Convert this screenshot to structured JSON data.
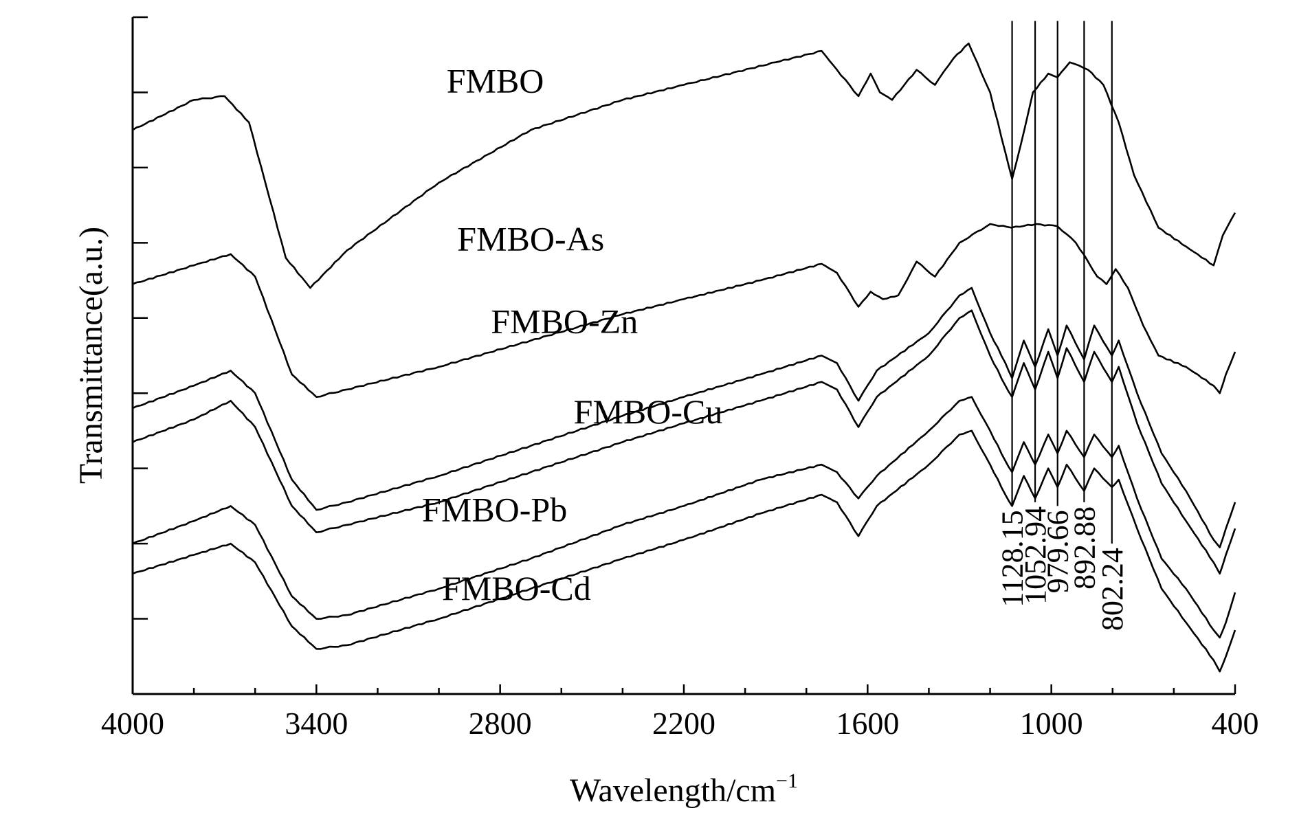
{
  "chart_data": {
    "type": "line",
    "xlabel": "Wavelength/cm",
    "xlabel_sup": "−1",
    "ylabel": "Transmittance(a.u.)",
    "xlim": [
      4000,
      400
    ],
    "x_reversed": true,
    "x_ticks": [
      4000,
      3400,
      2800,
      2200,
      1600,
      1000,
      400
    ],
    "y_ticks_count": 9,
    "ylim": [
      0,
      9
    ],
    "grid": false,
    "legend": "none",
    "series": [
      {
        "name": "FMBO",
        "points": [
          [
            4000,
            7.5
          ],
          [
            3800,
            7.9
          ],
          [
            3700,
            7.95
          ],
          [
            3620,
            7.6
          ],
          [
            3500,
            5.8
          ],
          [
            3420,
            5.4
          ],
          [
            3300,
            5.9
          ],
          [
            3000,
            6.8
          ],
          [
            2700,
            7.5
          ],
          [
            2400,
            7.9
          ],
          [
            2200,
            8.1
          ],
          [
            1900,
            8.4
          ],
          [
            1750,
            8.55
          ],
          [
            1700,
            8.3
          ],
          [
            1630,
            7.95
          ],
          [
            1590,
            8.25
          ],
          [
            1560,
            8.0
          ],
          [
            1520,
            7.9
          ],
          [
            1440,
            8.3
          ],
          [
            1380,
            8.1
          ],
          [
            1320,
            8.45
          ],
          [
            1270,
            8.65
          ],
          [
            1200,
            8.0
          ],
          [
            1150,
            7.2
          ],
          [
            1128.15,
            6.85
          ],
          [
            1100,
            7.3
          ],
          [
            1060,
            8.0
          ],
          [
            1010,
            8.25
          ],
          [
            980,
            8.2
          ],
          [
            940,
            8.4
          ],
          [
            880,
            8.3
          ],
          [
            830,
            8.1
          ],
          [
            780,
            7.6
          ],
          [
            730,
            6.9
          ],
          [
            650,
            6.2
          ],
          [
            560,
            5.95
          ],
          [
            470,
            5.7
          ],
          [
            440,
            6.1
          ],
          [
            400,
            6.4
          ]
        ]
      },
      {
        "name": "FMBO-As",
        "points": [
          [
            4000,
            5.45
          ],
          [
            3800,
            5.7
          ],
          [
            3680,
            5.85
          ],
          [
            3600,
            5.55
          ],
          [
            3480,
            4.25
          ],
          [
            3400,
            3.95
          ],
          [
            3300,
            4.05
          ],
          [
            3000,
            4.35
          ],
          [
            2700,
            4.7
          ],
          [
            2400,
            5.05
          ],
          [
            2200,
            5.25
          ],
          [
            1950,
            5.5
          ],
          [
            1750,
            5.72
          ],
          [
            1700,
            5.6
          ],
          [
            1630,
            5.15
          ],
          [
            1590,
            5.35
          ],
          [
            1550,
            5.25
          ],
          [
            1500,
            5.3
          ],
          [
            1440,
            5.75
          ],
          [
            1380,
            5.55
          ],
          [
            1300,
            6.0
          ],
          [
            1200,
            6.25
          ],
          [
            1130,
            6.2
          ],
          [
            1050,
            6.25
          ],
          [
            980,
            6.22
          ],
          [
            920,
            6.0
          ],
          [
            880,
            5.75
          ],
          [
            850,
            5.55
          ],
          [
            820,
            5.45
          ],
          [
            790,
            5.65
          ],
          [
            750,
            5.4
          ],
          [
            700,
            4.9
          ],
          [
            650,
            4.5
          ],
          [
            560,
            4.35
          ],
          [
            470,
            4.1
          ],
          [
            450,
            4.0
          ],
          [
            430,
            4.25
          ],
          [
            400,
            4.55
          ]
        ]
      },
      {
        "name": "FMBO-Zn",
        "points": [
          [
            4000,
            3.8
          ],
          [
            3800,
            4.1
          ],
          [
            3680,
            4.3
          ],
          [
            3600,
            4.0
          ],
          [
            3480,
            2.85
          ],
          [
            3400,
            2.45
          ],
          [
            3300,
            2.55
          ],
          [
            3000,
            2.9
          ],
          [
            2700,
            3.3
          ],
          [
            2400,
            3.7
          ],
          [
            2200,
            3.95
          ],
          [
            1950,
            4.25
          ],
          [
            1750,
            4.5
          ],
          [
            1700,
            4.4
          ],
          [
            1630,
            3.9
          ],
          [
            1570,
            4.3
          ],
          [
            1400,
            4.8
          ],
          [
            1300,
            5.3
          ],
          [
            1260,
            5.4
          ],
          [
            1200,
            4.8
          ],
          [
            1150,
            4.4
          ],
          [
            1128.15,
            4.2
          ],
          [
            1090,
            4.7
          ],
          [
            1053,
            4.35
          ],
          [
            1010,
            4.85
          ],
          [
            979.66,
            4.5
          ],
          [
            950,
            4.9
          ],
          [
            892.88,
            4.45
          ],
          [
            860,
            4.9
          ],
          [
            802.24,
            4.5
          ],
          [
            780,
            4.7
          ],
          [
            720,
            4.0
          ],
          [
            640,
            3.2
          ],
          [
            560,
            2.7
          ],
          [
            470,
            2.05
          ],
          [
            450,
            1.95
          ],
          [
            430,
            2.2
          ],
          [
            400,
            2.55
          ]
        ]
      },
      {
        "name": "FMBO-Cu",
        "points": [
          [
            4000,
            3.35
          ],
          [
            3800,
            3.65
          ],
          [
            3680,
            3.9
          ],
          [
            3600,
            3.55
          ],
          [
            3480,
            2.5
          ],
          [
            3400,
            2.15
          ],
          [
            3300,
            2.25
          ],
          [
            3000,
            2.55
          ],
          [
            2700,
            2.95
          ],
          [
            2400,
            3.35
          ],
          [
            2200,
            3.6
          ],
          [
            1950,
            3.9
          ],
          [
            1750,
            4.15
          ],
          [
            1700,
            4.05
          ],
          [
            1630,
            3.55
          ],
          [
            1570,
            3.95
          ],
          [
            1400,
            4.5
          ],
          [
            1300,
            5.0
          ],
          [
            1260,
            5.1
          ],
          [
            1200,
            4.5
          ],
          [
            1150,
            4.1
          ],
          [
            1128.15,
            3.95
          ],
          [
            1090,
            4.4
          ],
          [
            1053,
            4.05
          ],
          [
            1010,
            4.55
          ],
          [
            979.66,
            4.2
          ],
          [
            950,
            4.6
          ],
          [
            892.88,
            4.15
          ],
          [
            860,
            4.55
          ],
          [
            802.24,
            4.15
          ],
          [
            780,
            4.35
          ],
          [
            720,
            3.6
          ],
          [
            640,
            2.8
          ],
          [
            560,
            2.3
          ],
          [
            470,
            1.75
          ],
          [
            450,
            1.6
          ],
          [
            430,
            1.85
          ],
          [
            400,
            2.2
          ]
        ]
      },
      {
        "name": "FMBO-Pb",
        "points": [
          [
            4000,
            2.0
          ],
          [
            3800,
            2.3
          ],
          [
            3680,
            2.5
          ],
          [
            3600,
            2.25
          ],
          [
            3480,
            1.3
          ],
          [
            3400,
            1.0
          ],
          [
            3300,
            1.05
          ],
          [
            3000,
            1.4
          ],
          [
            2700,
            1.8
          ],
          [
            2400,
            2.25
          ],
          [
            2200,
            2.5
          ],
          [
            1950,
            2.85
          ],
          [
            1750,
            3.05
          ],
          [
            1700,
            2.95
          ],
          [
            1630,
            2.6
          ],
          [
            1570,
            2.9
          ],
          [
            1400,
            3.5
          ],
          [
            1300,
            3.9
          ],
          [
            1260,
            3.95
          ],
          [
            1200,
            3.5
          ],
          [
            1150,
            3.1
          ],
          [
            1128.15,
            2.95
          ],
          [
            1090,
            3.35
          ],
          [
            1053,
            3.05
          ],
          [
            1010,
            3.45
          ],
          [
            979.66,
            3.2
          ],
          [
            950,
            3.5
          ],
          [
            892.88,
            3.15
          ],
          [
            860,
            3.45
          ],
          [
            802.24,
            3.15
          ],
          [
            780,
            3.3
          ],
          [
            720,
            2.6
          ],
          [
            640,
            1.8
          ],
          [
            560,
            1.4
          ],
          [
            470,
            0.85
          ],
          [
            450,
            0.75
          ],
          [
            430,
            0.95
          ],
          [
            400,
            1.35
          ]
        ]
      },
      {
        "name": "FMBO-Cd",
        "points": [
          [
            4000,
            1.6
          ],
          [
            3800,
            1.85
          ],
          [
            3680,
            2.0
          ],
          [
            3600,
            1.75
          ],
          [
            3480,
            0.9
          ],
          [
            3400,
            0.6
          ],
          [
            3300,
            0.65
          ],
          [
            3000,
            1.0
          ],
          [
            2700,
            1.4
          ],
          [
            2400,
            1.8
          ],
          [
            2200,
            2.05
          ],
          [
            1950,
            2.4
          ],
          [
            1750,
            2.65
          ],
          [
            1700,
            2.55
          ],
          [
            1630,
            2.1
          ],
          [
            1570,
            2.5
          ],
          [
            1400,
            3.05
          ],
          [
            1300,
            3.45
          ],
          [
            1260,
            3.5
          ],
          [
            1200,
            3.05
          ],
          [
            1150,
            2.65
          ],
          [
            1128.15,
            2.5
          ],
          [
            1090,
            2.9
          ],
          [
            1053,
            2.6
          ],
          [
            1010,
            3.0
          ],
          [
            979.66,
            2.75
          ],
          [
            950,
            3.05
          ],
          [
            892.88,
            2.7
          ],
          [
            860,
            3.0
          ],
          [
            802.24,
            2.75
          ],
          [
            780,
            2.85
          ],
          [
            720,
            2.2
          ],
          [
            640,
            1.4
          ],
          [
            560,
            0.95
          ],
          [
            470,
            0.45
          ],
          [
            450,
            0.3
          ],
          [
            430,
            0.5
          ],
          [
            400,
            0.85
          ]
        ]
      }
    ],
    "series_label_positions": [
      {
        "x": 2975,
        "y": 8.0
      },
      {
        "x": 2940,
        "y": 5.9
      },
      {
        "x": 2830,
        "y": 4.8
      },
      {
        "x": 2560,
        "y": 3.6
      },
      {
        "x": 3055,
        "y": 2.3
      },
      {
        "x": 2990,
        "y": 1.25
      }
    ],
    "peak_lines": [
      {
        "x": 1128.15,
        "label": "1128.15",
        "y_top": 8.95,
        "y_bottom": 2.5
      },
      {
        "x": 1052.94,
        "label": "1052.94",
        "y_top": 8.95,
        "y_bottom": 2.55
      },
      {
        "x": 979.66,
        "label": "979.66",
        "y_top": 8.95,
        "y_bottom": 2.5
      },
      {
        "x": 892.88,
        "label": "892.88",
        "y_top": 8.95,
        "y_bottom": 2.55
      },
      {
        "x": 802.24,
        "label": "802.24",
        "y_top": 8.95,
        "y_bottom": 2.0
      }
    ]
  }
}
